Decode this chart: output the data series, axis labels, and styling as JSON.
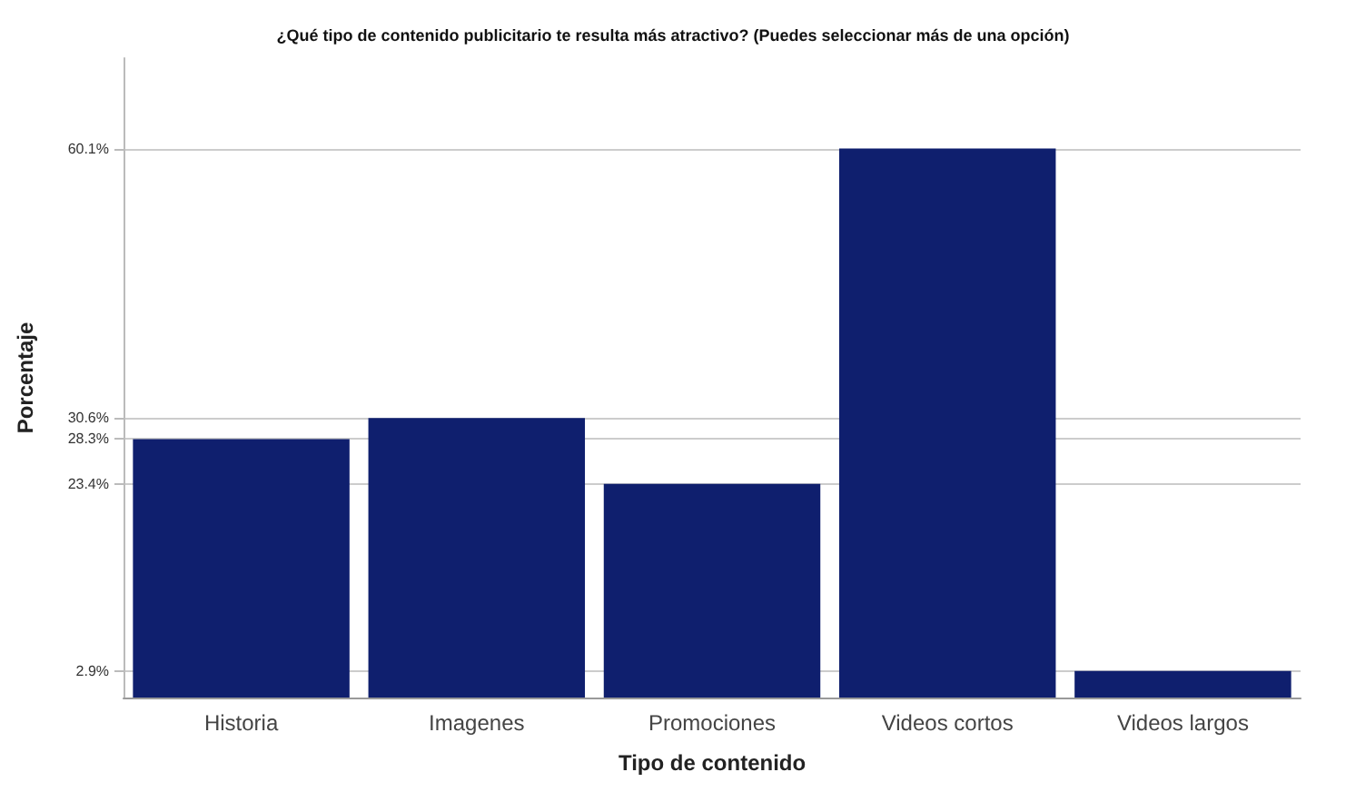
{
  "chart_data": {
    "type": "bar",
    "title": "¿Qué tipo de contenido publicitario te resulta más atractivo? (Puedes seleccionar más de una opción)",
    "xlabel": "Tipo de contenido",
    "ylabel": "Porcentaje",
    "categories": [
      "Historia",
      "Imagenes",
      "Promociones",
      "Videos cortos",
      "Videos largos"
    ],
    "values": [
      28.3,
      30.6,
      23.4,
      60.1,
      2.9
    ],
    "color": "#0f1f6e",
    "ylim": [
      0,
      70
    ],
    "yticks": [
      {
        "value": 2.9,
        "label": "2.9%"
      },
      {
        "value": 23.4,
        "label": "23.4%"
      },
      {
        "value": 28.3,
        "label": "28.3%"
      },
      {
        "value": 30.6,
        "label": "30.6%"
      },
      {
        "value": 60.1,
        "label": "60.1%"
      }
    ],
    "grid": "y"
  }
}
